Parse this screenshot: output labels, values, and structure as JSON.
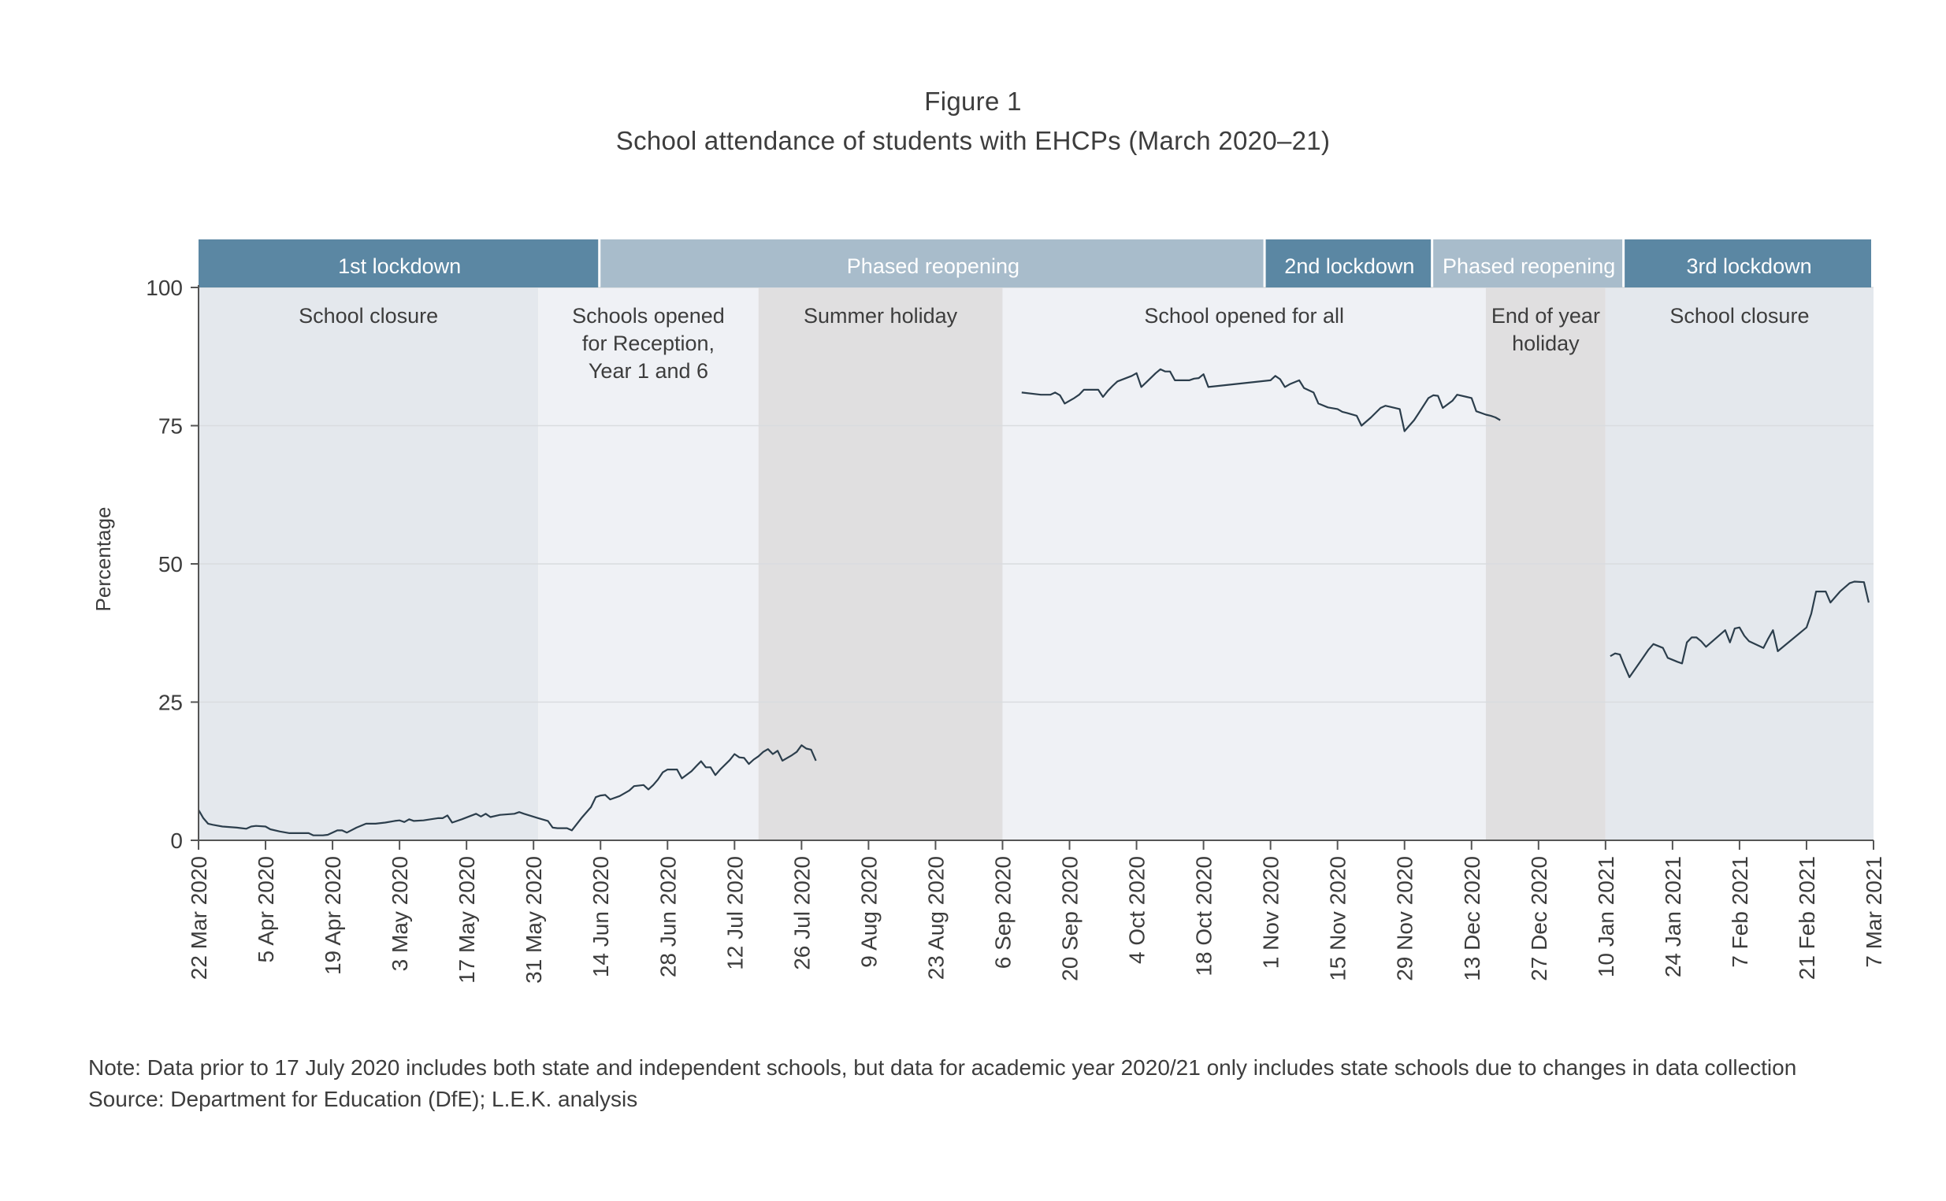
{
  "figure": {
    "number": "Figure 1",
    "title": "School attendance of students with EHCPs (March 2020–21)"
  },
  "note": "Note: Data prior to 17 July 2020 includes both state and independent schools, but data for academic year 2020/21 only includes state schools due to changes in data collection",
  "source": "Source: Department for Education (DfE); L.E.K. analysis",
  "colors": {
    "banner_dark": "#5b87a3",
    "banner_light": "#a8bccb",
    "bg_closure": "#e4e8ed",
    "bg_open": "#eff1f5",
    "bg_holiday": "#e0dfe0",
    "line": "#2c3e4c",
    "grid": "#d9dcdf"
  },
  "chart_data": {
    "type": "line",
    "ylabel": "Percentage",
    "xlabel": "",
    "ylim": [
      0,
      100
    ],
    "yticks": [
      0,
      25,
      50,
      75,
      100
    ],
    "x_start": "22 Mar 2020",
    "x_end": "7 Mar 2021",
    "xtick_labels": [
      "22 Mar 2020",
      "5 Apr 2020",
      "19 Apr 2020",
      "3 May 2020",
      "17 May 2020",
      "31 May 2020",
      "14 Jun 2020",
      "28 Jun 2020",
      "12 Jul 2020",
      "26 Jul 2020",
      "9 Aug 2020",
      "23 Aug 2020",
      "6 Sep 2020",
      "20 Sep 2020",
      "4 Oct 2020",
      "18 Oct 2020",
      "1 Nov 2020",
      "15 Nov 2020",
      "29 Nov 2020",
      "13 Dec 2020",
      "27 Dec 2020",
      "10 Jan 2021",
      "24 Jan 2021",
      "7 Feb 2021",
      "21 Feb 2021",
      "7 Mar 2021"
    ],
    "grid": "horizontal",
    "banners": [
      {
        "label": "1st lockdown",
        "start": "22 Mar 2020",
        "end": "14 Jun 2020",
        "style": "dark"
      },
      {
        "label": "Phased reopening",
        "start": "14 Jun 2020",
        "end": "31 Oct 2020",
        "style": "light"
      },
      {
        "label": "2nd lockdown",
        "start": "31 Oct 2020",
        "end": "5 Dec 2020",
        "style": "dark"
      },
      {
        "label": "Phased reopening",
        "start": "5 Dec 2020",
        "end": "14 Jan 2021",
        "style": "light"
      },
      {
        "label": "3rd lockdown",
        "start": "14 Jan 2021",
        "end": "7 Mar 2021",
        "style": "dark"
      }
    ],
    "periods": [
      {
        "label": "School closure",
        "start": "22 Mar 2020",
        "end": "1 Jun 2020",
        "style": "closure"
      },
      {
        "label": "Schools opened for Reception, Year 1 and 6",
        "lines": [
          "Schools opened",
          "for Reception,",
          "Year 1 and 6"
        ],
        "start": "1 Jun 2020",
        "end": "17 Jul 2020",
        "style": "open"
      },
      {
        "label": "Summer holiday",
        "start": "17 Jul 2020",
        "end": "6 Sep 2020",
        "style": "holiday"
      },
      {
        "label": "School opened for all",
        "start": "6 Sep 2020",
        "end": "16 Dec 2020",
        "style": "open"
      },
      {
        "label": "End of year holiday",
        "lines": [
          "End of year",
          "holiday"
        ],
        "start": "16 Dec 2020",
        "end": "10 Jan 2021",
        "style": "holiday"
      },
      {
        "label": "School closure",
        "start": "10 Jan 2021",
        "end": "7 Mar 2021",
        "style": "closure"
      }
    ],
    "series": [
      {
        "segments": [
          [
            [
              "22 Mar 2020",
              5.5
            ],
            [
              "23 Mar 2020",
              4
            ],
            [
              "24 Mar 2020",
              3
            ],
            [
              "25 Mar 2020",
              2.8
            ],
            [
              "27 Mar 2020",
              2.5
            ],
            [
              "30 Mar 2020",
              2.3
            ],
            [
              "31 Mar 2020",
              2.2
            ],
            [
              "1 Apr 2020",
              2.1
            ],
            [
              "2 Apr 2020",
              2.5
            ],
            [
              "3 Apr 2020",
              2.6
            ],
            [
              "5 Apr 2020",
              2.5
            ],
            [
              "6 Apr 2020",
              2
            ],
            [
              "8 Apr 2020",
              1.6
            ],
            [
              "10 Apr 2020",
              1.3
            ],
            [
              "14 Apr 2020",
              1.3
            ],
            [
              "15 Apr 2020",
              0.9
            ],
            [
              "17 Apr 2020",
              0.9
            ],
            [
              "18 Apr 2020",
              1
            ],
            [
              "20 Apr 2020",
              1.8
            ],
            [
              "21 Apr 2020",
              1.8
            ],
            [
              "22 Apr 2020",
              1.4
            ],
            [
              "24 Apr 2020",
              2.3
            ],
            [
              "26 Apr 2020",
              3
            ],
            [
              "28 Apr 2020",
              3
            ],
            [
              "30 Apr 2020",
              3.2
            ],
            [
              "2 May 2020",
              3.5
            ],
            [
              "3 May 2020",
              3.6
            ],
            [
              "4 May 2020",
              3.3
            ],
            [
              "5 May 2020",
              3.8
            ],
            [
              "6 May 2020",
              3.5
            ],
            [
              "8 May 2020",
              3.6
            ],
            [
              "11 May 2020",
              4
            ],
            [
              "12 May 2020",
              4
            ],
            [
              "13 May 2020",
              4.5
            ],
            [
              "14 May 2020",
              3.2
            ],
            [
              "16 May 2020",
              3.8
            ],
            [
              "19 May 2020",
              4.8
            ],
            [
              "20 May 2020",
              4.3
            ],
            [
              "21 May 2020",
              4.8
            ],
            [
              "22 May 2020",
              4.2
            ],
            [
              "24 May 2020",
              4.6
            ],
            [
              "27 May 2020",
              4.8
            ],
            [
              "28 May 2020",
              5.1
            ],
            [
              "29 May 2020",
              4.8
            ],
            [
              "1 Jun 2020",
              4
            ],
            [
              "3 Jun 2020",
              3.5
            ],
            [
              "4 Jun 2020",
              2.3
            ],
            [
              "5 Jun 2020",
              2.2
            ],
            [
              "7 Jun 2020",
              2.2
            ],
            [
              "8 Jun 2020",
              1.8
            ],
            [
              "10 Jun 2020",
              4
            ],
            [
              "12 Jun 2020",
              6
            ],
            [
              "13 Jun 2020",
              7.8
            ],
            [
              "14 Jun 2020",
              8.1
            ],
            [
              "15 Jun 2020",
              8.2
            ],
            [
              "16 Jun 2020",
              7.4
            ],
            [
              "18 Jun 2020",
              8
            ],
            [
              "19 Jun 2020",
              8.5
            ],
            [
              "20 Jun 2020",
              9
            ],
            [
              "21 Jun 2020",
              9.8
            ],
            [
              "23 Jun 2020",
              10
            ],
            [
              "24 Jun 2020",
              9.2
            ],
            [
              "25 Jun 2020",
              10
            ],
            [
              "26 Jun 2020",
              11
            ],
            [
              "27 Jun 2020",
              12.3
            ],
            [
              "28 Jun 2020",
              12.8
            ],
            [
              "30 Jun 2020",
              12.8
            ],
            [
              "1 Jul 2020",
              11.2
            ],
            [
              "3 Jul 2020",
              12.5
            ],
            [
              "4 Jul 2020",
              13.4
            ],
            [
              "5 Jul 2020",
              14.3
            ],
            [
              "6 Jul 2020",
              13.2
            ],
            [
              "7 Jul 2020",
              13.2
            ],
            [
              "8 Jul 2020",
              11.8
            ],
            [
              "9 Jul 2020",
              12.8
            ],
            [
              "11 Jul 2020",
              14.5
            ],
            [
              "12 Jul 2020",
              15.6
            ],
            [
              "13 Jul 2020",
              15
            ],
            [
              "14 Jul 2020",
              14.9
            ],
            [
              "15 Jul 2020",
              13.8
            ],
            [
              "16 Jul 2020",
              14.6
            ],
            [
              "17 Jul 2020",
              15.2
            ],
            [
              "18 Jul 2020",
              16
            ],
            [
              "19 Jul 2020",
              16.5
            ],
            [
              "20 Jul 2020",
              15.6
            ],
            [
              "21 Jul 2020",
              16.2
            ],
            [
              "22 Jul 2020",
              14.4
            ],
            [
              "24 Jul 2020",
              15.4
            ],
            [
              "25 Jul 2020",
              16
            ],
            [
              "26 Jul 2020",
              17.2
            ],
            [
              "27 Jul 2020",
              16.6
            ],
            [
              "28 Jul 2020",
              16.4
            ],
            [
              "29 Jul 2020",
              14.4
            ]
          ],
          [
            [
              "10 Sep 2020",
              81
            ],
            [
              "14 Sep 2020",
              80.6
            ],
            [
              "16 Sep 2020",
              80.6
            ],
            [
              "17 Sep 2020",
              81
            ],
            [
              "18 Sep 2020",
              80.5
            ],
            [
              "19 Sep 2020",
              79
            ],
            [
              "21 Sep 2020",
              80
            ],
            [
              "22 Sep 2020",
              80.6
            ],
            [
              "23 Sep 2020",
              81.5
            ],
            [
              "26 Sep 2020",
              81.5
            ],
            [
              "27 Sep 2020",
              80.2
            ],
            [
              "28 Sep 2020",
              81.3
            ],
            [
              "29 Sep 2020",
              82.2
            ],
            [
              "30 Sep 2020",
              83
            ],
            [
              "3 Oct 2020",
              84
            ],
            [
              "4 Oct 2020",
              84.5
            ],
            [
              "5 Oct 2020",
              82
            ],
            [
              "6 Oct 2020",
              82.8
            ],
            [
              "8 Oct 2020",
              84.5
            ],
            [
              "9 Oct 2020",
              85.2
            ],
            [
              "10 Oct 2020",
              84.8
            ],
            [
              "11 Oct 2020",
              84.8
            ],
            [
              "12 Oct 2020",
              83.2
            ],
            [
              "15 Oct 2020",
              83.2
            ],
            [
              "16 Oct 2020",
              83.5
            ],
            [
              "17 Oct 2020",
              83.6
            ],
            [
              "18 Oct 2020",
              84.3
            ],
            [
              "19 Oct 2020",
              82
            ],
            [
              "1 Nov 2020",
              83.2
            ],
            [
              "2 Nov 2020",
              84
            ],
            [
              "3 Nov 2020",
              83.4
            ],
            [
              "4 Nov 2020",
              82
            ],
            [
              "5 Nov 2020",
              82.5
            ],
            [
              "7 Nov 2020",
              83.2
            ],
            [
              "8 Nov 2020",
              81.8
            ],
            [
              "10 Nov 2020",
              81
            ],
            [
              "11 Nov 2020",
              79
            ],
            [
              "13 Nov 2020",
              78.3
            ],
            [
              "15 Nov 2020",
              78
            ],
            [
              "16 Nov 2020",
              77.5
            ],
            [
              "17 Nov 2020",
              77.3
            ],
            [
              "19 Nov 2020",
              76.8
            ],
            [
              "20 Nov 2020",
              75
            ],
            [
              "22 Nov 2020",
              76.5
            ],
            [
              "24 Nov 2020",
              78.2
            ],
            [
              "25 Nov 2020",
              78.6
            ],
            [
              "26 Nov 2020",
              78.4
            ],
            [
              "28 Nov 2020",
              78
            ],
            [
              "29 Nov 2020",
              74
            ],
            [
              "1 Dec 2020",
              76
            ],
            [
              "2 Dec 2020",
              77.3
            ],
            [
              "4 Dec 2020",
              80
            ],
            [
              "5 Dec 2020",
              80.5
            ],
            [
              "6 Dec 2020",
              80.4
            ],
            [
              "7 Dec 2020",
              78.2
            ],
            [
              "9 Dec 2020",
              79.5
            ],
            [
              "10 Dec 2020",
              80.6
            ],
            [
              "12 Dec 2020",
              80.2
            ],
            [
              "13 Dec 2020",
              80
            ],
            [
              "14 Dec 2020",
              77.6
            ],
            [
              "16 Dec 2020",
              77
            ],
            [
              "17 Dec 2020",
              76.8
            ],
            [
              "18 Dec 2020",
              76.5
            ],
            [
              "19 Dec 2020",
              76
            ]
          ],
          [
            [
              "11 Jan 2021",
              33.3
            ],
            [
              "12 Jan 2021",
              33.8
            ],
            [
              "13 Jan 2021",
              33.6
            ],
            [
              "14 Jan 2021",
              31.5
            ],
            [
              "15 Jan 2021",
              29.5
            ],
            [
              "17 Jan 2021",
              32
            ],
            [
              "19 Jan 2021",
              34.5
            ],
            [
              "20 Jan 2021",
              35.5
            ],
            [
              "22 Jan 2021",
              34.8
            ],
            [
              "23 Jan 2021",
              33
            ],
            [
              "25 Jan 2021",
              32.3
            ],
            [
              "26 Jan 2021",
              32
            ],
            [
              "27 Jan 2021",
              35.8
            ],
            [
              "28 Jan 2021",
              36.7
            ],
            [
              "29 Jan 2021",
              36.7
            ],
            [
              "30 Jan 2021",
              36
            ],
            [
              "31 Jan 2021",
              35
            ],
            [
              "2 Feb 2021",
              36.5
            ],
            [
              "4 Feb 2021",
              38
            ],
            [
              "5 Feb 2021",
              35.8
            ],
            [
              "6 Feb 2021",
              38.3
            ],
            [
              "7 Feb 2021",
              38.5
            ],
            [
              "8 Feb 2021",
              37
            ],
            [
              "9 Feb 2021",
              36
            ],
            [
              "12 Feb 2021",
              34.8
            ],
            [
              "13 Feb 2021",
              36.5
            ],
            [
              "14 Feb 2021",
              38
            ],
            [
              "15 Feb 2021",
              34.2
            ],
            [
              "21 Feb 2021",
              38.5
            ],
            [
              "22 Feb 2021",
              41
            ],
            [
              "23 Feb 2021",
              45
            ],
            [
              "25 Feb 2021",
              45
            ],
            [
              "26 Feb 2021",
              43
            ],
            [
              "28 Feb 2021",
              45
            ],
            [
              "2 Mar 2021",
              46.5
            ],
            [
              "3 Mar 2021",
              46.8
            ],
            [
              "5 Mar 2021",
              46.7
            ],
            [
              "6 Mar 2021",
              43
            ]
          ]
        ]
      }
    ]
  }
}
